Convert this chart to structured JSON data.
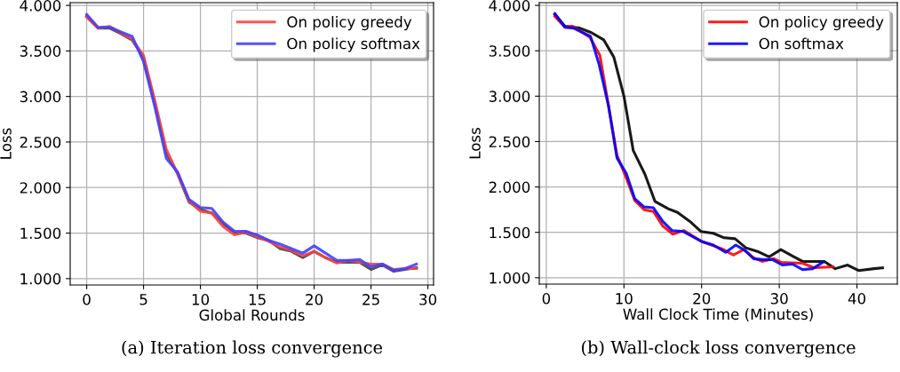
{
  "chart_data": [
    {
      "type": "line",
      "xlabel": "Global Rounds",
      "ylabel": "Loss",
      "annotations": [
        "(a) Iteration loss convergence"
      ],
      "grid": true,
      "legend": "top right",
      "x": [
        0,
        1,
        2,
        3,
        4,
        5,
        6,
        7,
        8,
        9,
        10,
        11,
        12,
        13,
        14,
        15,
        16,
        17,
        18,
        19,
        20,
        21,
        22,
        23,
        24,
        25,
        26,
        27,
        28,
        29
      ],
      "xlim": [
        -1.45,
        30.5
      ],
      "xticks": [
        0,
        5,
        10,
        15,
        20,
        25,
        30
      ],
      "ylim": [
        930,
        4030
      ],
      "yticks": [
        {
          "value": 1000,
          "label": "1.000"
        },
        {
          "value": 1500,
          "label": "1.500"
        },
        {
          "value": 2000,
          "label": "2.000"
        },
        {
          "value": 2500,
          "label": "2.500"
        },
        {
          "value": 3000,
          "label": "3.000"
        },
        {
          "value": 3500,
          "label": "3.500"
        },
        {
          "value": 4000,
          "label": "4.000"
        }
      ],
      "series": [
        {
          "color": "#404040",
          "values": [
            3880,
            3750,
            3750,
            3690,
            3620,
            3430,
            2930,
            2380,
            2150,
            1840,
            1760,
            1720,
            1600,
            1500,
            1500,
            1450,
            1420,
            1330,
            1300,
            1230,
            1300,
            1230,
            1180,
            1180,
            1180,
            1100,
            1150,
            1080,
            1100,
            1120
          ]
        },
        {
          "name": "On policy greedy",
          "color": "#ff4040",
          "values": [
            3870,
            3750,
            3770,
            3700,
            3630,
            3450,
            2950,
            2420,
            2150,
            1850,
            1740,
            1720,
            1570,
            1480,
            1510,
            1460,
            1410,
            1350,
            1310,
            1250,
            1300,
            1230,
            1170,
            1200,
            1180,
            1160,
            1160,
            1100,
            1110,
            1110
          ]
        },
        {
          "name": "On policy softmax",
          "color": "#4040ff",
          "values": [
            3900,
            3760,
            3760,
            3710,
            3660,
            3380,
            2880,
            2320,
            2170,
            1870,
            1780,
            1770,
            1620,
            1520,
            1520,
            1480,
            1420,
            1380,
            1330,
            1280,
            1360,
            1280,
            1200,
            1200,
            1210,
            1130,
            1160,
            1090,
            1110,
            1160
          ]
        }
      ]
    },
    {
      "type": "line",
      "xlabel": "Wall Clock Time (Minutes)",
      "ylabel": "Loss",
      "annotations": [
        "(b) Wall-clock loss convergence"
      ],
      "grid": true,
      "legend": "top right",
      "xlim": [
        -0.9,
        45.2
      ],
      "xticks": [
        0,
        10,
        20,
        30,
        40
      ],
      "ylim": [
        930,
        4030
      ],
      "yticks": [
        {
          "value": 1000,
          "label": "1.000"
        },
        {
          "value": 1500,
          "label": "1.500"
        },
        {
          "value": 2000,
          "label": "2.000"
        },
        {
          "value": 2500,
          "label": "2.500"
        },
        {
          "value": 3000,
          "label": "3.000"
        },
        {
          "value": 3500,
          "label": "3.500"
        },
        {
          "value": 4000,
          "label": "4.000"
        }
      ],
      "series": [
        {
          "color": "#000000",
          "x": [
            1.1,
            2.4,
            4.3,
            5.8,
            7.4,
            8.7,
            10,
            11.2,
            12.7,
            14,
            15.7,
            16.9,
            18.5,
            19.9,
            21.5,
            22.9,
            24.3,
            25.7,
            27.2,
            28.7,
            30.2,
            31.7,
            33,
            34.5,
            35.8,
            37.2,
            38.8,
            40.2,
            42.2,
            43.3
          ],
          "values": [
            3900,
            3770,
            3750,
            3700,
            3620,
            3430,
            3000,
            2400,
            2140,
            1840,
            1760,
            1720,
            1620,
            1510,
            1490,
            1440,
            1430,
            1330,
            1290,
            1230,
            1310,
            1240,
            1180,
            1180,
            1180,
            1100,
            1140,
            1080,
            1100,
            1110
          ]
        },
        {
          "name": "On policy greedy",
          "color": "#ff0000",
          "x": [
            1.1,
            2.4,
            3.4,
            5.6,
            6.9,
            7.8,
            9.1,
            10.3,
            11.4,
            12.6,
            13.8,
            15,
            16.3,
            17.7,
            20,
            22.6,
            24.1,
            25.4,
            26.7,
            27.8,
            29.3,
            30.2,
            33,
            34.5,
            36.9
          ],
          "values": [
            3880,
            3760,
            3770,
            3650,
            3450,
            3000,
            2350,
            2100,
            1850,
            1750,
            1730,
            1570,
            1480,
            1520,
            1400,
            1320,
            1250,
            1310,
            1220,
            1180,
            1210,
            1170,
            1160,
            1110,
            1120
          ]
        },
        {
          "name": "On softmax",
          "color": "#0000ff",
          "x": [
            1.1,
            2.4,
            3.5,
            5.7,
            6.8,
            8,
            9.1,
            10.3,
            11.4,
            12.6,
            13.8,
            15,
            16.2,
            17.6,
            20,
            21.5,
            23.1,
            24.4,
            25.6,
            26.7,
            27.8,
            29.1,
            30.4,
            31.7,
            33,
            34.3,
            35.6
          ],
          "values": [
            3910,
            3760,
            3750,
            3660,
            3350,
            2900,
            2320,
            2150,
            1870,
            1780,
            1770,
            1620,
            1520,
            1510,
            1400,
            1360,
            1280,
            1360,
            1300,
            1210,
            1200,
            1200,
            1140,
            1150,
            1090,
            1100,
            1170
          ]
        }
      ]
    }
  ]
}
